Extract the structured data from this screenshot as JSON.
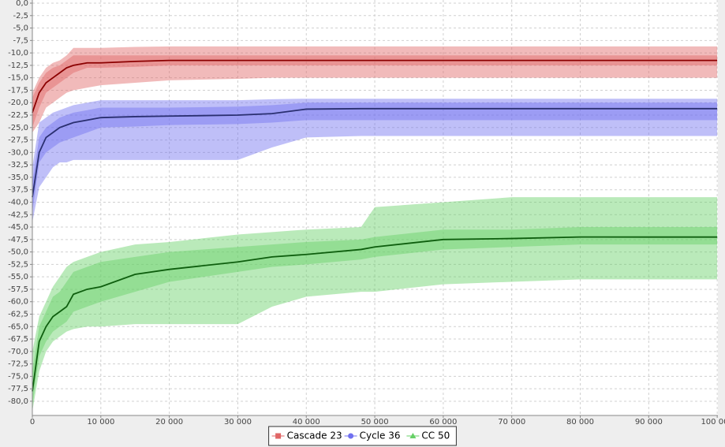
{
  "chart_data": {
    "type": "line",
    "x": [
      0,
      1000,
      2000,
      3000,
      4000,
      5000,
      6000,
      8000,
      10000,
      15000,
      20000,
      30000,
      35000,
      40000,
      48000,
      50000,
      60000,
      70000,
      80000,
      90000,
      100000
    ],
    "xlim": [
      0,
      100100
    ],
    "ylim": [
      -82.7,
      0
    ],
    "grid": true,
    "legend": "bottom",
    "xticks": [
      0,
      {
        "value": 10000,
        "label": "10 000"
      },
      {
        "value": 20000,
        "label": "20 000"
      },
      {
        "value": 30000,
        "label": "30 000"
      },
      {
        "value": 40000,
        "label": "40 000"
      },
      {
        "value": 50000,
        "label": "50 000"
      },
      {
        "value": 60000,
        "label": "60 000"
      },
      {
        "value": 70000,
        "label": "70 000"
      },
      {
        "value": 80000,
        "label": "80 000"
      },
      {
        "value": 90000,
        "label": "90 000"
      },
      {
        "value": 100000,
        "label": "100 000"
      }
    ],
    "yticks": [
      {
        "value": 0,
        "label": "0,0"
      },
      {
        "value": -2.5,
        "label": "-2,5"
      },
      {
        "value": -5,
        "label": "-5,0"
      },
      {
        "value": -7.5,
        "label": "-7,5"
      },
      {
        "value": -10,
        "label": "-10,0"
      },
      {
        "value": -12.5,
        "label": "-12,5"
      },
      {
        "value": -15,
        "label": "-15,0"
      },
      {
        "value": -17.5,
        "label": "-17,5"
      },
      {
        "value": -20,
        "label": "-20,0"
      },
      {
        "value": -22.5,
        "label": "-22,5"
      },
      {
        "value": -25,
        "label": "-25,0"
      },
      {
        "value": -27.5,
        "label": "-27,5"
      },
      {
        "value": -30,
        "label": "-30,0"
      },
      {
        "value": -32.5,
        "label": "-32,5"
      },
      {
        "value": -35,
        "label": "-35,0"
      },
      {
        "value": -37.5,
        "label": "-37,5"
      },
      {
        "value": -40,
        "label": "-40,0"
      },
      {
        "value": -42.5,
        "label": "-42,5"
      },
      {
        "value": -45,
        "label": "-45,0"
      },
      {
        "value": -47.5,
        "label": "-47,5"
      },
      {
        "value": -50,
        "label": "-50,0"
      },
      {
        "value": -52.5,
        "label": "-52,5"
      },
      {
        "value": -55,
        "label": "-55,0"
      },
      {
        "value": -57.5,
        "label": "-57,5"
      },
      {
        "value": -60,
        "label": "-60,0"
      },
      {
        "value": -62.5,
        "label": "-62,5"
      },
      {
        "value": -65,
        "label": "-65,0"
      },
      {
        "value": -67.5,
        "label": "-67,5"
      },
      {
        "value": -70,
        "label": "-70,0"
      },
      {
        "value": -72.5,
        "label": "-72,5"
      },
      {
        "value": -75,
        "label": "-75,0"
      },
      {
        "value": -77.5,
        "label": "-77,5"
      },
      {
        "value": -80,
        "label": "-80,0"
      }
    ],
    "series": [
      {
        "name": "Cascade 23",
        "color": "#e06666",
        "line_color": "#8b0000",
        "marker": "square",
        "values": [
          -22,
          -18,
          -16,
          -15,
          -14,
          -13,
          -12.5,
          -12,
          -12,
          -11.7,
          -11.5,
          -11.5,
          -11.5,
          -11.5,
          -11.5,
          -11.5,
          -11.5,
          -11.5,
          -11.5,
          -11.5,
          -11.5
        ],
        "inner_high": [
          -19,
          -16,
          -14,
          -13,
          -12.5,
          -11.5,
          -10.5,
          -10.5,
          -10.5,
          -10.5,
          -10.5,
          -10.5,
          -10.5,
          -10.5,
          -10.5,
          -10.5,
          -10.5,
          -10.5,
          -10.5,
          -10.5,
          -10.5
        ],
        "inner_low": [
          -25,
          -21,
          -18,
          -17,
          -16,
          -15,
          -14,
          -13,
          -13,
          -12.8,
          -12.5,
          -12.5,
          -12.5,
          -12.5,
          -12.5,
          -12.5,
          -12.5,
          -12.5,
          -12.5,
          -12.5,
          -12.5
        ],
        "outer_high": [
          -18,
          -15,
          -13,
          -12,
          -11.5,
          -10.5,
          -9,
          -9,
          -9,
          -8.8,
          -8.7,
          -8.7,
          -8.7,
          -8.7,
          -8.7,
          -8.7,
          -8.7,
          -8.7,
          -8.7,
          -8.7,
          -8.7
        ],
        "outer_low": [
          -26,
          -24,
          -21,
          -20,
          -19,
          -18,
          -17.5,
          -17,
          -16.5,
          -16,
          -15.5,
          -15.2,
          -15,
          -15,
          -15,
          -15,
          -15,
          -15,
          -15,
          -15,
          -15
        ]
      },
      {
        "name": "Cycle 36",
        "color": "#7070f0",
        "line_color": "#2a2f70",
        "marker": "circle",
        "values": [
          -39,
          -30,
          -27,
          -26,
          -25,
          -24.5,
          -24,
          -23.5,
          -23,
          -22.8,
          -22.7,
          -22.5,
          -22.2,
          -21.3,
          -21.2,
          -21.2,
          -21.2,
          -21.2,
          -21.2,
          -21.2,
          -21.2
        ],
        "inner_high": [
          -36,
          -27,
          -25,
          -24,
          -23,
          -22.5,
          -22,
          -21.5,
          -21,
          -21,
          -21,
          -20.8,
          -20.5,
          -20,
          -20,
          -20,
          -20,
          -20,
          -20,
          -20,
          -20
        ],
        "inner_low": [
          -42,
          -32,
          -30,
          -29,
          -28,
          -27.5,
          -27,
          -26,
          -25,
          -24.8,
          -24.5,
          -24.3,
          -24,
          -23.5,
          -23.5,
          -23.5,
          -23.5,
          -23.5,
          -23.5,
          -23.5,
          -23.5
        ],
        "outer_high": [
          -33,
          -24,
          -23,
          -22,
          -21.5,
          -21,
          -20.5,
          -20,
          -19.5,
          -19.5,
          -19.5,
          -19.5,
          -19.3,
          -19.2,
          -19.2,
          -19.2,
          -19.2,
          -19.2,
          -19.2,
          -19.2,
          -19.2
        ],
        "outer_low": [
          -44,
          -37,
          -35,
          -33,
          -32,
          -32,
          -31.5,
          -31.5,
          -31.5,
          -31.5,
          -31.5,
          -31.5,
          -29,
          -27,
          -26.7,
          -26.7,
          -26.7,
          -26.7,
          -26.7,
          -26.7,
          -26.7
        ]
      },
      {
        "name": "CC 50",
        "color": "#66d066",
        "line_color": "#0e5e0e",
        "marker": "triangle",
        "values": [
          -78,
          -68,
          -65,
          -63,
          -62,
          -61,
          -58.5,
          -57.5,
          -57,
          -54.5,
          -53.5,
          -52,
          -51,
          -50.5,
          -49.5,
          -49,
          -47.5,
          -47.3,
          -47,
          -47,
          -47
        ],
        "inner_high": [
          -74,
          -65,
          -62,
          -59,
          -58,
          -56,
          -54,
          -53,
          -52,
          -51,
          -50,
          -49,
          -48.5,
          -48,
          -47.5,
          -47,
          -45.5,
          -45.5,
          -45,
          -45,
          -45
        ],
        "inner_low": [
          -81,
          -71,
          -68,
          -66,
          -65,
          -64,
          -62,
          -61,
          -60,
          -58,
          -56,
          -54,
          -53,
          -52.5,
          -51.5,
          -51,
          -49.5,
          -49,
          -48.5,
          -48.5,
          -48.5
        ],
        "outer_high": [
          -70,
          -63,
          -60,
          -57,
          -55,
          -53,
          -52,
          -51,
          -50,
          -48.5,
          -48,
          -46.5,
          -46,
          -45.5,
          -45,
          -41,
          -40,
          -39,
          -39,
          -39,
          -39
        ],
        "outer_low": [
          -82,
          -74,
          -70,
          -68,
          -67,
          -66,
          -65.5,
          -65,
          -65,
          -64.5,
          -64.5,
          -64.5,
          -61,
          -59,
          -58,
          -58,
          -56.5,
          -56,
          -55.5,
          -55.5,
          -55.5
        ]
      }
    ]
  }
}
